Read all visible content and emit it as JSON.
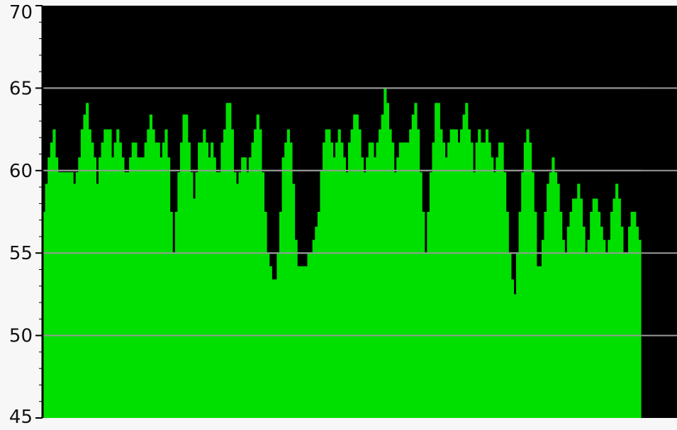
{
  "chart_data": {
    "type": "area",
    "ylim": [
      45,
      70
    ],
    "yticks": [
      45,
      50,
      55,
      60,
      65,
      70
    ],
    "yticklabels": [
      "45",
      "50",
      "55",
      "60",
      "65",
      "70"
    ],
    "grid": true,
    "colors": {
      "plot_background": "#000000",
      "fill": "#00e000",
      "grid": "#9a9a9a",
      "page_background": "#f7f7f7"
    },
    "series": [
      {
        "values": [
          57.5,
          59.2,
          60.8,
          61.7,
          62.5,
          60.8,
          59.9,
          59.9,
          59.9,
          59.9,
          59.9,
          59.9,
          59.2,
          59.9,
          60.8,
          62.5,
          63.4,
          64.1,
          62.5,
          61.7,
          60.8,
          59.2,
          60.8,
          61.7,
          62.5,
          62.5,
          62.5,
          60.8,
          61.7,
          62.5,
          61.7,
          60.8,
          59.9,
          59.9,
          60.8,
          61.7,
          61.7,
          60.8,
          60.8,
          60.8,
          61.7,
          62.5,
          63.4,
          62.5,
          61.7,
          61.7,
          60.8,
          61.7,
          62.5,
          60.8,
          57.5,
          55.0,
          57.5,
          59.9,
          61.7,
          63.4,
          63.4,
          61.7,
          59.9,
          58.3,
          59.9,
          61.7,
          61.7,
          62.5,
          61.7,
          60.8,
          61.7,
          60.8,
          59.9,
          59.9,
          61.7,
          62.5,
          64.1,
          64.1,
          62.5,
          59.9,
          59.2,
          59.9,
          60.8,
          60.8,
          59.9,
          60.8,
          61.7,
          62.5,
          63.4,
          62.5,
          59.9,
          57.5,
          55.0,
          54.2,
          53.4,
          53.4,
          55.0,
          57.5,
          60.8,
          61.7,
          62.5,
          61.7,
          59.2,
          55.8,
          54.2,
          54.2,
          54.2,
          54.2,
          55.0,
          55.0,
          55.8,
          56.6,
          57.5,
          60.0,
          61.7,
          62.5,
          62.5,
          61.7,
          60.8,
          61.7,
          62.5,
          61.7,
          60.8,
          59.9,
          61.7,
          62.5,
          63.4,
          63.4,
          62.5,
          60.8,
          59.9,
          60.8,
          61.7,
          61.7,
          60.8,
          61.7,
          62.5,
          63.4,
          65.0,
          64.1,
          62.5,
          61.7,
          59.9,
          60.8,
          61.7,
          61.7,
          61.7,
          61.7,
          62.5,
          63.4,
          64.1,
          62.5,
          59.9,
          57.5,
          55.0,
          57.5,
          59.9,
          61.7,
          64.1,
          64.1,
          62.5,
          61.7,
          60.8,
          61.7,
          62.5,
          62.5,
          62.5,
          61.7,
          62.5,
          63.4,
          64.1,
          62.5,
          61.7,
          59.9,
          61.7,
          62.5,
          61.7,
          61.7,
          62.5,
          61.7,
          60.8,
          59.9,
          60.8,
          61.7,
          61.7,
          59.9,
          57.5,
          55.0,
          53.4,
          52.5,
          55.0,
          57.5,
          59.9,
          61.7,
          62.5,
          61.7,
          59.9,
          57.5,
          54.2,
          54.2,
          55.8,
          57.5,
          59.2,
          59.9,
          60.8,
          59.9,
          59.2,
          57.5,
          55.8,
          55.0,
          56.6,
          57.5,
          58.3,
          58.3,
          59.2,
          58.3,
          56.6,
          55.0,
          55.8,
          57.5,
          58.3,
          58.3,
          57.5,
          56.6,
          55.8,
          55.0,
          55.8,
          57.5,
          58.3,
          59.2,
          58.3,
          56.6,
          55.0,
          55.0,
          56.6,
          57.5,
          57.5,
          56.6,
          55.8
        ]
      }
    ]
  }
}
